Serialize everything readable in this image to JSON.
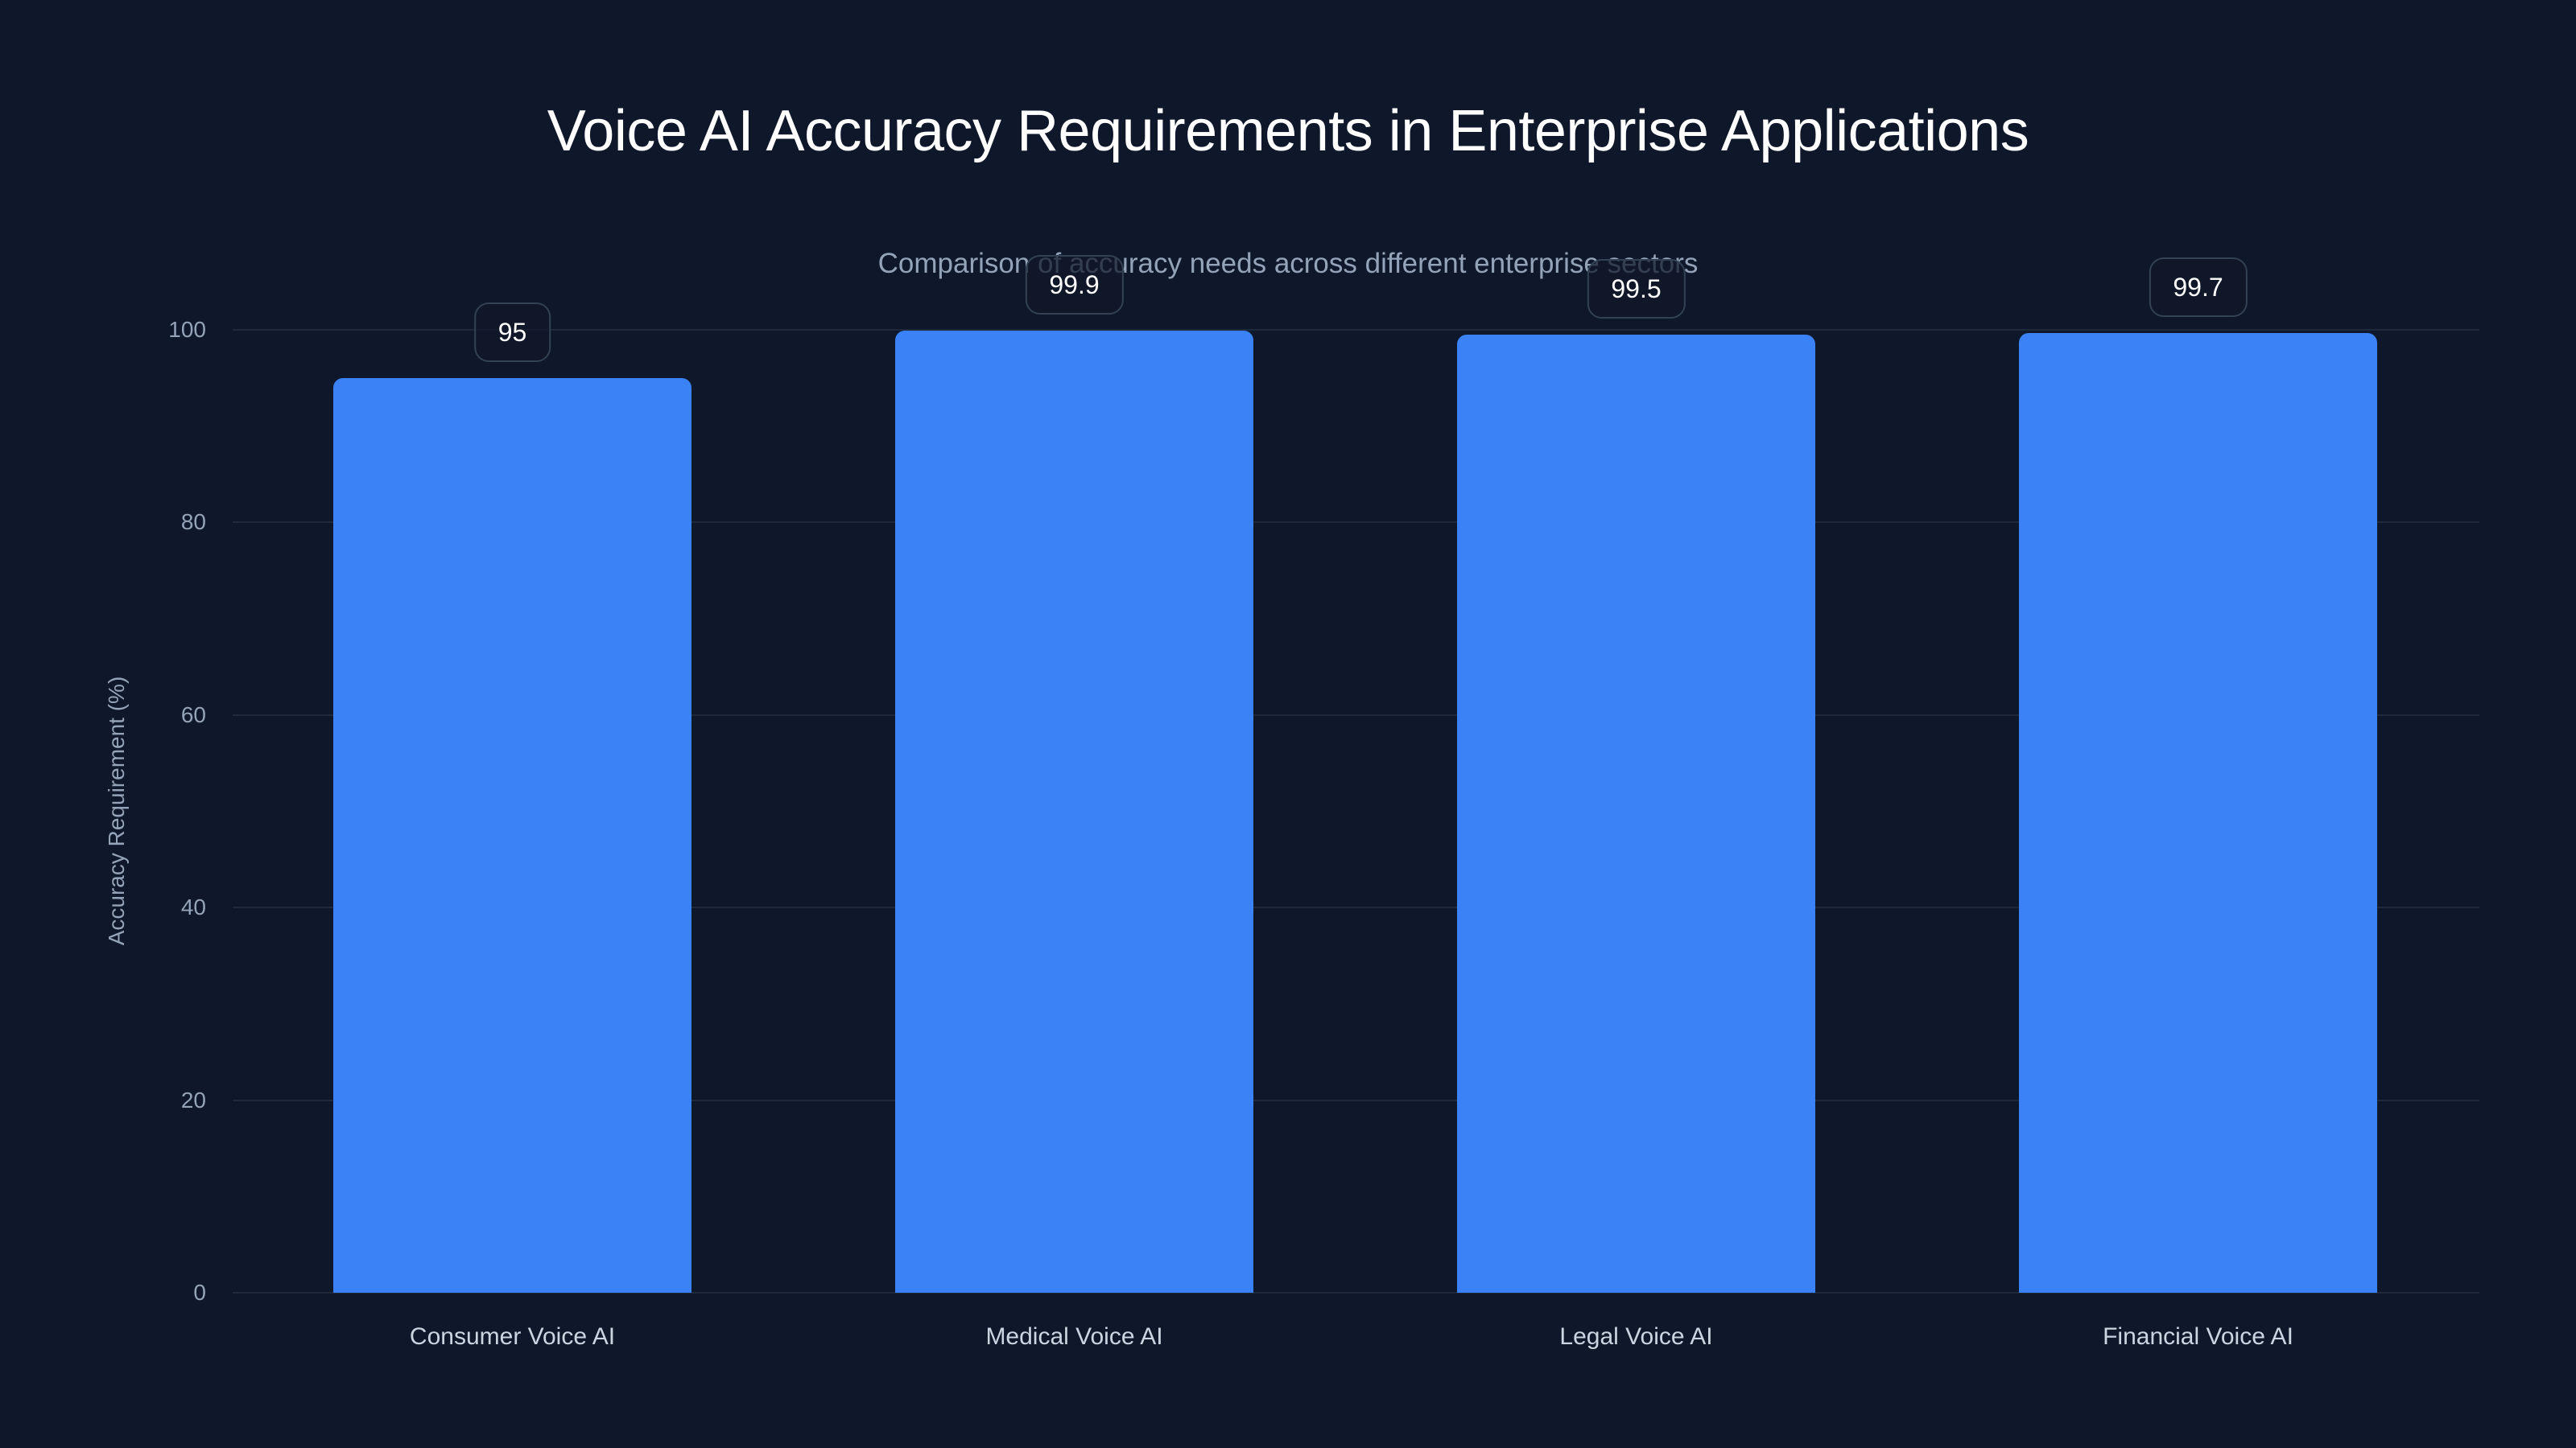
{
  "header": {
    "title": "Voice AI Accuracy Requirements in Enterprise Applications",
    "subtitle": "Comparison of accuracy needs across different enterprise sectors"
  },
  "axes": {
    "y_title": "Accuracy Requirement (%)",
    "y_ticks": [
      "0",
      "20",
      "40",
      "60",
      "80",
      "100"
    ]
  },
  "categories": [
    {
      "label": "Consumer Voice AI",
      "value": "95"
    },
    {
      "label": "Medical Voice AI",
      "value": "99.9"
    },
    {
      "label": "Legal Voice AI",
      "value": "99.5"
    },
    {
      "label": "Financial Voice AI",
      "value": "99.7"
    }
  ],
  "colors": {
    "background": "#0f172a",
    "bar": "#3b82f6",
    "grid": "#1e293b",
    "axis_text": "#94a3b8",
    "title_text": "#ffffff"
  },
  "chart_data": {
    "type": "bar",
    "title": "Voice AI Accuracy Requirements in Enterprise Applications",
    "subtitle": "Comparison of accuracy needs across different enterprise sectors",
    "categories": [
      "Consumer Voice AI",
      "Medical Voice AI",
      "Legal Voice AI",
      "Financial Voice AI"
    ],
    "values": [
      95,
      99.9,
      99.5,
      99.7
    ],
    "data_labels": [
      "95",
      "99.9",
      "99.5",
      "99.7"
    ],
    "xlabel": "",
    "ylabel": "Accuracy Requirement (%)",
    "ylim": [
      0,
      100
    ],
    "yticks": [
      0,
      20,
      40,
      60,
      80,
      100
    ],
    "grid": "horizontal",
    "legend": "none",
    "bar_color": "#3b82f6"
  }
}
